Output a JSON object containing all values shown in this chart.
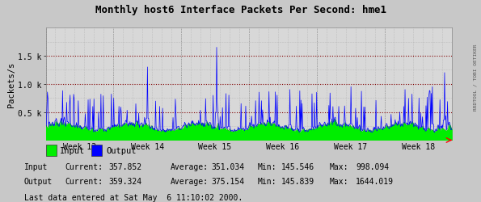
{
  "title": "Monthly host6 Interface Packets Per Second: hme1",
  "ylabel": "Packets/s",
  "background_color": "#c8c8c8",
  "plot_bg_color": "#d8d8d8",
  "grid_color_h": "#800000",
  "grid_color_v": "#b0b0b0",
  "input_color": "#00ee00",
  "output_color": "#0000ff",
  "weeks": [
    "Week 13",
    "Week 14",
    "Week 15",
    "Week 16",
    "Week 17",
    "Week 18"
  ],
  "ylim": [
    0,
    2000
  ],
  "yticks": [
    500,
    1000,
    1500
  ],
  "ytick_labels": [
    "0.5 k",
    "1.0 k",
    "1.5 k"
  ],
  "legend_input": "Input",
  "legend_output": "Output",
  "stats_input_current": "357.852",
  "stats_input_average": "351.034",
  "stats_input_min": "145.546",
  "stats_input_max": "998.094",
  "stats_output_current": "359.324",
  "stats_output_average": "375.154",
  "stats_output_min": "145.839",
  "stats_output_max": "1644.019",
  "last_data": "Last data entered at Sat May  6 11:10:02 2000.",
  "watermark": "RRDTOOL / TOBI OETIKER",
  "num_points": 700
}
